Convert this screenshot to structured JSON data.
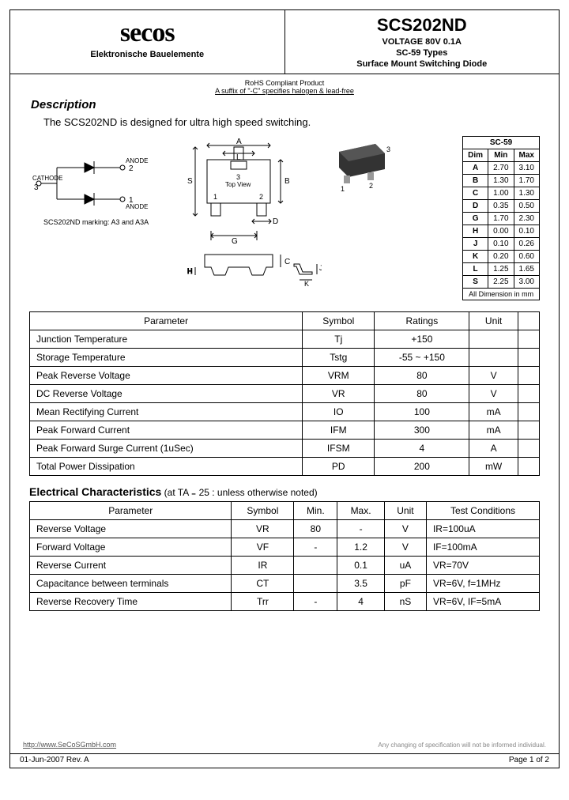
{
  "header": {
    "logo": "secos",
    "logo_sub": "Elektronische Bauelemente",
    "part_no": "SCS202ND",
    "voltage": "VOLTAGE  80V 0.1A",
    "package": "SC-59 Types",
    "desc": "Surface Mount Switching Diode"
  },
  "compliance": {
    "line1": "RoHS Compliant Product",
    "line2": "A suffix of \"-C\" specifies halogen & lead-free"
  },
  "description": {
    "title": "Description",
    "text": "The SCS202ND is designed for ultra high speed switching."
  },
  "pinout": {
    "anode_top": "ANODE",
    "anode_bot": "ANODE",
    "cathode": "CATHODE",
    "pin1": "1",
    "pin2": "2",
    "pin3": "3",
    "marking": "SCS202ND marking: A3 and A3A"
  },
  "topview": {
    "labels": {
      "A": "A",
      "L": "L",
      "S": "S",
      "B": "B",
      "D": "D",
      "G": "G",
      "C": "C",
      "H": "H",
      "J": "J",
      "K": "K"
    },
    "pin1": "1",
    "pin2": "2",
    "pin3": "3",
    "tv": "Top View"
  },
  "photo": {
    "pin1": "1",
    "pin2": "2",
    "pin3": "3"
  },
  "dimensions": {
    "title": "SC-59",
    "cols": [
      "Dim",
      "Min",
      "Max"
    ],
    "rows": [
      [
        "A",
        "2.70",
        "3.10"
      ],
      [
        "B",
        "1.30",
        "1.70"
      ],
      [
        "C",
        "1.00",
        "1.30"
      ],
      [
        "D",
        "0.35",
        "0.50"
      ],
      [
        "G",
        "1.70",
        "2.30"
      ],
      [
        "H",
        "0.00",
        "0.10"
      ],
      [
        "J",
        "0.10",
        "0.26"
      ],
      [
        "K",
        "0.20",
        "0.60"
      ],
      [
        "L",
        "1.25",
        "1.65"
      ],
      [
        "S",
        "2.25",
        "3.00"
      ]
    ],
    "footer": "All Dimension in mm"
  },
  "params": {
    "cols": [
      "Parameter",
      "Symbol",
      "Ratings",
      "Unit",
      ""
    ],
    "rows": [
      [
        "Junction Temperature",
        "Tj",
        "+150",
        "",
        ""
      ],
      [
        "Storage Temperature",
        "Tstg",
        "-55 ~ +150",
        "",
        ""
      ],
      [
        "Peak Reverse Voltage",
        "VRM",
        "80",
        "V",
        ""
      ],
      [
        "DC Reverse Voltage",
        "VR",
        "80",
        "V",
        ""
      ],
      [
        "Mean Rectifying Current",
        "IO",
        "100",
        "mA",
        ""
      ],
      [
        "Peak Forward Current",
        "IFM",
        "300",
        "mA",
        ""
      ],
      [
        "Peak Forward Surge Current (1uSec)",
        "IFSM",
        "4",
        "A",
        ""
      ],
      [
        "Total Power Dissipation",
        "PD",
        "200",
        "mW",
        ""
      ]
    ]
  },
  "electrical": {
    "title": "Electrical Characteristics",
    "sub": " (at TA ₌ 25 :   unless otherwise noted)",
    "cols": [
      "Parameter",
      "Symbol",
      "Min.",
      "Max.",
      "Unit",
      "Test Conditions"
    ],
    "rows": [
      [
        "Reverse Voltage",
        "VR",
        "80",
        "-",
        "V",
        "IR=100uA"
      ],
      [
        "Forward Voltage",
        "VF",
        "-",
        "1.2",
        "V",
        "IF=100mA"
      ],
      [
        "Reverse Current",
        "IR",
        "",
        "0.1",
        "uA",
        "VR=70V"
      ],
      [
        "Capacitance between terminals",
        "CT",
        "",
        "3.5",
        "pF",
        "VR=6V, f=1MHz"
      ],
      [
        "Reverse Recovery Time",
        "Trr",
        "-",
        "4",
        "nS",
        "VR=6V, IF=5mA"
      ]
    ]
  },
  "footer": {
    "url": "http://www.SeCoSGmbH.com",
    "disclaimer": "Any changing of specification will not be informed individual.",
    "rev": "01-Jun-2007 Rev. A",
    "page": "Page 1 of 2"
  }
}
